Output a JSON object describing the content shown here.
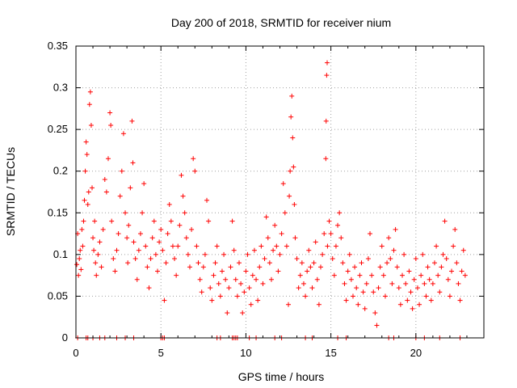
{
  "chart_data": {
    "type": "scatter",
    "title": "Day 200 of 2018, SRMTID for receiver nium",
    "xlabel": "GPS time / hours",
    "ylabel": "SRMTID / TECUs",
    "xlim": [
      0,
      24
    ],
    "ylim": [
      0,
      0.35
    ],
    "xticks": [
      0,
      5,
      10,
      15,
      20
    ],
    "yticks": [
      0,
      0.05,
      0.1,
      0.15,
      0.2,
      0.25,
      0.3,
      0.35
    ],
    "xtick_labels": [
      "0",
      "5",
      "10",
      "15",
      "20"
    ],
    "ytick_labels": [
      "0",
      "0.05",
      "0.1",
      "0.15",
      "0.2",
      "0.25",
      "0.3",
      "0.35"
    ],
    "grid": true,
    "marker": "+",
    "marker_color": "#ff0000",
    "series": [
      {
        "name": "SRMTID",
        "points": [
          [
            0.05,
            0.088
          ],
          [
            0.1,
            0.125
          ],
          [
            0.15,
            0.075
          ],
          [
            0.2,
            0.095
          ],
          [
            0.25,
            0.105
          ],
          [
            0.3,
            0.082
          ],
          [
            0.35,
            0.13
          ],
          [
            0.4,
            0.11
          ],
          [
            0.45,
            0.14
          ],
          [
            0.5,
            0.165
          ],
          [
            0.55,
            0.2
          ],
          [
            0.6,
            0.235
          ],
          [
            0.65,
            0.22
          ],
          [
            0.7,
            0.16
          ],
          [
            0.75,
            0.175
          ],
          [
            0.8,
            0.28
          ],
          [
            0.85,
            0.295
          ],
          [
            0.9,
            0.255
          ],
          [
            0.95,
            0.18
          ],
          [
            1.0,
            0.12
          ],
          [
            1.05,
            0.105
          ],
          [
            1.1,
            0.14
          ],
          [
            1.15,
            0.09
          ],
          [
            1.2,
            0.075
          ],
          [
            1.3,
            0.1
          ],
          [
            1.4,
            0.115
          ],
          [
            1.5,
            0.085
          ],
          [
            1.6,
            0.13
          ],
          [
            1.7,
            0.19
          ],
          [
            1.8,
            0.175
          ],
          [
            1.9,
            0.215
          ],
          [
            2.0,
            0.27
          ],
          [
            2.05,
            0.255
          ],
          [
            2.1,
            0.14
          ],
          [
            2.2,
            0.095
          ],
          [
            2.3,
            0.08
          ],
          [
            2.4,
            0.105
          ],
          [
            2.5,
            0.125
          ],
          [
            2.6,
            0.17
          ],
          [
            2.7,
            0.2
          ],
          [
            2.8,
            0.245
          ],
          [
            2.9,
            0.15
          ],
          [
            3.0,
            0.12
          ],
          [
            3.05,
            0.09
          ],
          [
            3.1,
            0.135
          ],
          [
            3.2,
            0.18
          ],
          [
            3.3,
            0.26
          ],
          [
            3.35,
            0.21
          ],
          [
            3.4,
            0.115
          ],
          [
            3.5,
            0.095
          ],
          [
            3.6,
            0.07
          ],
          [
            3.7,
            0.105
          ],
          [
            3.8,
            0.125
          ],
          [
            3.9,
            0.15
          ],
          [
            4.0,
            0.185
          ],
          [
            4.1,
            0.11
          ],
          [
            4.2,
            0.085
          ],
          [
            4.3,
            0.06
          ],
          [
            4.4,
            0.095
          ],
          [
            4.5,
            0.12
          ],
          [
            4.6,
            0.14
          ],
          [
            4.7,
            0.1
          ],
          [
            4.8,
            0.08
          ],
          [
            4.9,
            0.115
          ],
          [
            5.0,
            0.13
          ],
          [
            5.1,
            0.105
          ],
          [
            5.2,
            0.045
          ],
          [
            5.3,
            0.09
          ],
          [
            5.4,
            0.125
          ],
          [
            5.5,
            0.16
          ],
          [
            5.6,
            0.14
          ],
          [
            5.7,
            0.11
          ],
          [
            5.8,
            0.095
          ],
          [
            5.9,
            0.075
          ],
          [
            6.0,
            0.11
          ],
          [
            6.1,
            0.135
          ],
          [
            6.2,
            0.195
          ],
          [
            6.3,
            0.17
          ],
          [
            6.4,
            0.15
          ],
          [
            6.5,
            0.12
          ],
          [
            6.6,
            0.1
          ],
          [
            6.7,
            0.085
          ],
          [
            6.8,
            0.13
          ],
          [
            6.9,
            0.215
          ],
          [
            7.0,
            0.2
          ],
          [
            7.1,
            0.11
          ],
          [
            7.2,
            0.09
          ],
          [
            7.3,
            0.07
          ],
          [
            7.4,
            0.055
          ],
          [
            7.5,
            0.085
          ],
          [
            7.6,
            0.1
          ],
          [
            7.7,
            0.165
          ],
          [
            7.8,
            0.14
          ],
          [
            7.9,
            0.06
          ],
          [
            8.0,
            0.045
          ],
          [
            8.1,
            0.075
          ],
          [
            8.2,
            0.09
          ],
          [
            8.3,
            0.11
          ],
          [
            8.4,
            0.065
          ],
          [
            8.5,
            0.05
          ],
          [
            8.6,
            0.08
          ],
          [
            8.7,
            0.1
          ],
          [
            8.8,
            0.07
          ],
          [
            8.9,
            0.03
          ],
          [
            9.0,
            0.06
          ],
          [
            9.1,
            0.085
          ],
          [
            9.2,
            0.14
          ],
          [
            9.3,
            0.105
          ],
          [
            9.4,
            0.07
          ],
          [
            9.5,
            0.05
          ],
          [
            9.6,
            0.09
          ],
          [
            9.7,
            0.065
          ],
          [
            9.8,
            0.03
          ],
          [
            9.9,
            0.055
          ],
          [
            10.0,
            0.08
          ],
          [
            10.1,
            0.1
          ],
          [
            10.2,
            0.06
          ],
          [
            10.3,
            0.04
          ],
          [
            10.4,
            0.075
          ],
          [
            10.5,
            0.105
          ],
          [
            10.6,
            0.07
          ],
          [
            10.7,
            0.045
          ],
          [
            10.8,
            0.085
          ],
          [
            10.9,
            0.11
          ],
          [
            11.0,
            0.065
          ],
          [
            11.1,
            0.095
          ],
          [
            11.2,
            0.145
          ],
          [
            11.3,
            0.12
          ],
          [
            11.4,
            0.09
          ],
          [
            11.5,
            0.07
          ],
          [
            11.6,
            0.105
          ],
          [
            11.7,
            0.135
          ],
          [
            11.8,
            0.11
          ],
          [
            11.9,
            0.08
          ],
          [
            12.0,
            0.1
          ],
          [
            12.1,
            0.125
          ],
          [
            12.2,
            0.185
          ],
          [
            12.3,
            0.15
          ],
          [
            12.4,
            0.11
          ],
          [
            12.5,
            0.04
          ],
          [
            12.55,
            0.17
          ],
          [
            12.6,
            0.2
          ],
          [
            12.65,
            0.265
          ],
          [
            12.7,
            0.29
          ],
          [
            12.75,
            0.24
          ],
          [
            12.8,
            0.205
          ],
          [
            12.85,
            0.16
          ],
          [
            12.9,
            0.12
          ],
          [
            13.0,
            0.095
          ],
          [
            13.1,
            0.06
          ],
          [
            13.2,
            0.075
          ],
          [
            13.3,
            0.09
          ],
          [
            13.4,
            0.065
          ],
          [
            13.5,
            0.05
          ],
          [
            13.6,
            0.08
          ],
          [
            13.7,
            0.105
          ],
          [
            13.8,
            0.085
          ],
          [
            13.9,
            0.06
          ],
          [
            14.0,
            0.09
          ],
          [
            14.1,
            0.115
          ],
          [
            14.2,
            0.07
          ],
          [
            14.3,
            0.04
          ],
          [
            14.4,
            0.085
          ],
          [
            14.5,
            0.1
          ],
          [
            14.6,
            0.125
          ],
          [
            14.7,
            0.215
          ],
          [
            14.72,
            0.26
          ],
          [
            14.75,
            0.315
          ],
          [
            14.78,
            0.33
          ],
          [
            14.8,
            0.11
          ],
          [
            14.9,
            0.14
          ],
          [
            15.0,
            0.125
          ],
          [
            15.1,
            0.095
          ],
          [
            15.2,
            0.075
          ],
          [
            15.3,
            0.11
          ],
          [
            15.4,
            0.135
          ],
          [
            15.5,
            0.15
          ],
          [
            15.6,
            0.12
          ],
          [
            15.7,
            0.09
          ],
          [
            15.8,
            0.065
          ],
          [
            15.9,
            0.045
          ],
          [
            16.0,
            0.08
          ],
          [
            16.1,
            0.1
          ],
          [
            16.2,
            0.07
          ],
          [
            16.3,
            0.05
          ],
          [
            16.4,
            0.085
          ],
          [
            16.5,
            0.06
          ],
          [
            16.6,
            0.04
          ],
          [
            16.7,
            0.075
          ],
          [
            16.8,
            0.09
          ],
          [
            16.9,
            0.055
          ],
          [
            17.0,
            0.035
          ],
          [
            17.1,
            0.065
          ],
          [
            17.2,
            0.095
          ],
          [
            17.3,
            0.125
          ],
          [
            17.4,
            0.075
          ],
          [
            17.5,
            0.055
          ],
          [
            17.6,
            0.03
          ],
          [
            17.7,
            0.015
          ],
          [
            17.8,
            0.06
          ],
          [
            17.9,
            0.085
          ],
          [
            18.0,
            0.11
          ],
          [
            18.1,
            0.075
          ],
          [
            18.2,
            0.05
          ],
          [
            18.3,
            0.09
          ],
          [
            18.4,
            0.12
          ],
          [
            18.5,
            0.095
          ],
          [
            18.6,
            0.065
          ],
          [
            18.7,
            0.105
          ],
          [
            18.8,
            0.13
          ],
          [
            18.9,
            0.085
          ],
          [
            19.0,
            0.06
          ],
          [
            19.1,
            0.04
          ],
          [
            19.2,
            0.075
          ],
          [
            19.3,
            0.1
          ],
          [
            19.4,
            0.065
          ],
          [
            19.5,
            0.045
          ],
          [
            19.6,
            0.08
          ],
          [
            19.7,
            0.055
          ],
          [
            19.8,
            0.035
          ],
          [
            19.9,
            0.07
          ],
          [
            20.0,
            0.095
          ],
          [
            20.1,
            0.06
          ],
          [
            20.2,
            0.04
          ],
          [
            20.3,
            0.075
          ],
          [
            20.4,
            0.1
          ],
          [
            20.5,
            0.065
          ],
          [
            20.6,
            0.05
          ],
          [
            20.7,
            0.085
          ],
          [
            20.8,
            0.07
          ],
          [
            20.9,
            0.045
          ],
          [
            21.0,
            0.065
          ],
          [
            21.1,
            0.09
          ],
          [
            21.2,
            0.11
          ],
          [
            21.3,
            0.075
          ],
          [
            21.4,
            0.055
          ],
          [
            21.5,
            0.085
          ],
          [
            21.6,
            0.1
          ],
          [
            21.7,
            0.14
          ],
          [
            21.8,
            0.095
          ],
          [
            21.9,
            0.07
          ],
          [
            22.0,
            0.05
          ],
          [
            22.1,
            0.08
          ],
          [
            22.2,
            0.11
          ],
          [
            22.3,
            0.13
          ],
          [
            22.4,
            0.09
          ],
          [
            22.5,
            0.065
          ],
          [
            22.6,
            0.045
          ],
          [
            22.7,
            0.08
          ],
          [
            22.8,
            0.105
          ],
          [
            22.9,
            0.075
          ],
          [
            0.1,
            0.0
          ],
          [
            0.6,
            0.0
          ],
          [
            0.7,
            0.0
          ],
          [
            1.0,
            0.0
          ],
          [
            1.4,
            0.0
          ],
          [
            1.7,
            0.0
          ],
          [
            2.4,
            0.0
          ],
          [
            2.9,
            0.0
          ],
          [
            3.4,
            0.0
          ],
          [
            5.0,
            0.0
          ],
          [
            5.1,
            0.0
          ],
          [
            5.2,
            0.0
          ],
          [
            8.3,
            0.0
          ],
          [
            8.5,
            0.0
          ],
          [
            9.2,
            0.0
          ],
          [
            9.3,
            0.0
          ],
          [
            9.4,
            0.0
          ],
          [
            9.5,
            0.0
          ],
          [
            10.2,
            0.0
          ],
          [
            10.6,
            0.0
          ],
          [
            11.7,
            0.0
          ],
          [
            12.1,
            0.0
          ],
          [
            13.5,
            0.0
          ],
          [
            13.9,
            0.0
          ],
          [
            15.4,
            0.0
          ],
          [
            15.9,
            0.0
          ],
          [
            18.4,
            0.0
          ],
          [
            18.7,
            0.0
          ],
          [
            20.0,
            0.0
          ],
          [
            20.5,
            0.0
          ],
          [
            21.4,
            0.0
          ],
          [
            22.6,
            0.0
          ]
        ]
      }
    ]
  }
}
